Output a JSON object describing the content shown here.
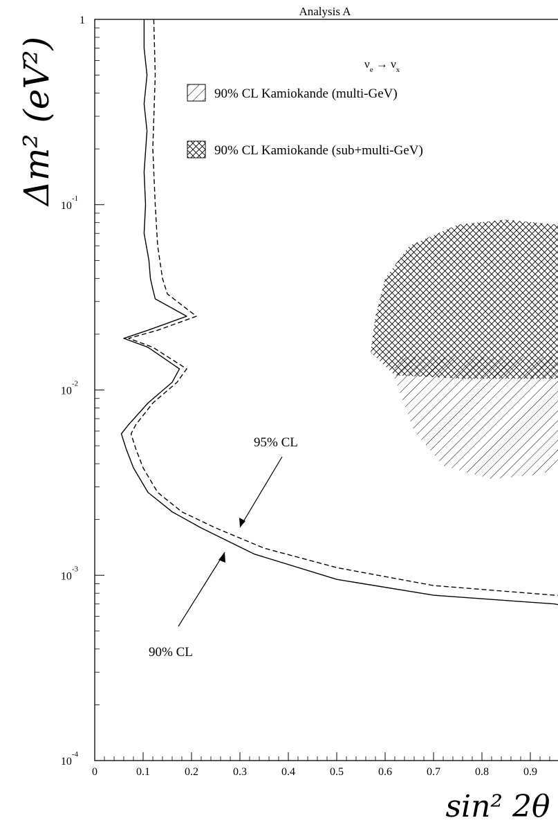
{
  "chart_data": {
    "type": "line",
    "title": "Analysis A",
    "xlabel": "sin² 2θ",
    "ylabel": "Δm² (eV²)",
    "xlim": [
      0,
      1
    ],
    "ylim": [
      0.0001,
      1
    ],
    "yscale": "log",
    "x_ticks": [
      "0",
      "0.1",
      "0.2",
      "0.3",
      "0.4",
      "0.5",
      "0.6",
      "0.7",
      "0.8",
      "0.9"
    ],
    "y_tick_labels": [
      {
        "base": "10",
        "exp": "-4",
        "value": 0.0001
      },
      {
        "base": "10",
        "exp": "-3",
        "value": 0.001
      },
      {
        "base": "10",
        "exp": "-2",
        "value": 0.01
      },
      {
        "base": "10",
        "exp": "-1",
        "value": 0.1
      },
      {
        "base": "1",
        "exp": "",
        "value": 1
      }
    ],
    "legend_header": {
      "lhs": "ν",
      "lhs_sub": "e",
      "rhs": "ν",
      "rhs_sub": "x"
    },
    "legend": [
      {
        "label": "90% CL Kamiokande (multi-GeV)",
        "pattern": "hatch"
      },
      {
        "label": "90% CL Kamiokande (sub+multi-GeV)",
        "pattern": "crosshatch"
      }
    ],
    "annotations": [
      {
        "text": "95% CL",
        "points_to": "dashed"
      },
      {
        "text": "90% CL",
        "points_to": "solid"
      }
    ],
    "series": [
      {
        "style": "solid",
        "points": [
          [
            0.102,
            1.0
          ],
          [
            0.102,
            0.7
          ],
          [
            0.108,
            0.5
          ],
          [
            0.102,
            0.35
          ],
          [
            0.108,
            0.25
          ],
          [
            0.102,
            0.15
          ],
          [
            0.105,
            0.1
          ],
          [
            0.102,
            0.07
          ],
          [
            0.112,
            0.05
          ],
          [
            0.115,
            0.04
          ],
          [
            0.12,
            0.035
          ],
          [
            0.125,
            0.031
          ],
          [
            0.19,
            0.025
          ],
          [
            0.11,
            0.021
          ],
          [
            0.06,
            0.019
          ],
          [
            0.11,
            0.017
          ],
          [
            0.175,
            0.013
          ],
          [
            0.16,
            0.011
          ],
          [
            0.11,
            0.0085
          ],
          [
            0.07,
            0.0065
          ],
          [
            0.055,
            0.0058
          ],
          [
            0.065,
            0.0048
          ],
          [
            0.08,
            0.0038
          ],
          [
            0.11,
            0.0028
          ],
          [
            0.16,
            0.0022
          ],
          [
            0.22,
            0.0018
          ],
          [
            0.33,
            0.0013
          ],
          [
            0.5,
            0.00095
          ],
          [
            0.7,
            0.00078
          ],
          [
            0.95,
            0.0007
          ],
          [
            1.0,
            0.00066
          ]
        ]
      },
      {
        "style": "dashed",
        "points": [
          [
            0.122,
            1.0
          ],
          [
            0.125,
            0.5
          ],
          [
            0.12,
            0.2
          ],
          [
            0.125,
            0.1
          ],
          [
            0.13,
            0.06
          ],
          [
            0.14,
            0.04
          ],
          [
            0.15,
            0.033
          ],
          [
            0.21,
            0.025
          ],
          [
            0.13,
            0.021
          ],
          [
            0.07,
            0.019
          ],
          [
            0.12,
            0.017
          ],
          [
            0.19,
            0.013
          ],
          [
            0.17,
            0.011
          ],
          [
            0.12,
            0.0085
          ],
          [
            0.085,
            0.0065
          ],
          [
            0.075,
            0.0058
          ],
          [
            0.085,
            0.0048
          ],
          [
            0.1,
            0.0038
          ],
          [
            0.13,
            0.0028
          ],
          [
            0.18,
            0.0022
          ],
          [
            0.25,
            0.0018
          ],
          [
            0.35,
            0.0014
          ],
          [
            0.5,
            0.0011
          ],
          [
            0.7,
            0.00088
          ],
          [
            0.95,
            0.00078
          ],
          [
            1.0,
            0.00076
          ]
        ]
      }
    ],
    "regions": [
      {
        "pattern": "hatch",
        "points": [
          [
            0.62,
            0.0115
          ],
          [
            0.66,
            0.006
          ],
          [
            0.72,
            0.0039
          ],
          [
            0.82,
            0.0033
          ],
          [
            0.92,
            0.0035
          ],
          [
            1.0,
            0.0042
          ],
          [
            1.0,
            0.015
          ],
          [
            0.62,
            0.015
          ]
        ]
      },
      {
        "pattern": "crosshatch",
        "points": [
          [
            0.58,
            0.025
          ],
          [
            0.6,
            0.04
          ],
          [
            0.65,
            0.06
          ],
          [
            0.75,
            0.078
          ],
          [
            0.85,
            0.083
          ],
          [
            1.0,
            0.076
          ],
          [
            1.0,
            0.0115
          ],
          [
            0.76,
            0.0115
          ],
          [
            0.62,
            0.012
          ],
          [
            0.57,
            0.016
          ]
        ]
      }
    ]
  }
}
